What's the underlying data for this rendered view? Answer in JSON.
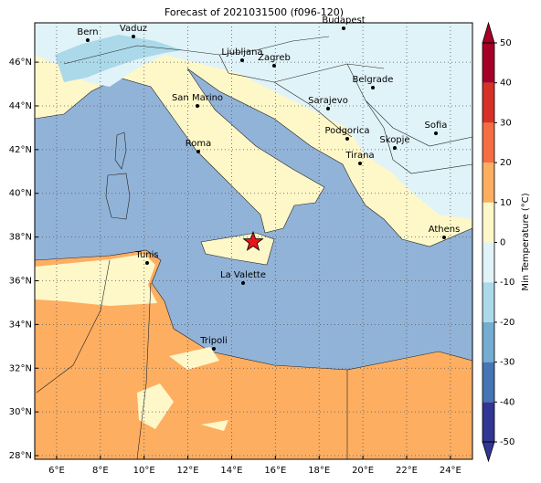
{
  "title": "Forecast of 2021031500 (f096-120)",
  "cities": [
    "Bern",
    "Vaduz",
    "Budapest",
    "Ljubljana",
    "Zagreb",
    "Belgrade",
    "San Marino",
    "Sarajevo",
    "Sofia",
    "Podgorica",
    "Skopje",
    "Roma",
    "Tirana",
    "Athens",
    "Tunis",
    "La Valette",
    "Tripoli"
  ],
  "xticks": [
    {
      "value": 6,
      "label": "6°E"
    },
    {
      "value": 8,
      "label": "8°E"
    },
    {
      "value": 10,
      "label": "10°E"
    },
    {
      "value": 12,
      "label": "12°E"
    },
    {
      "value": 14,
      "label": "14°E"
    },
    {
      "value": 16,
      "label": "16°E"
    },
    {
      "value": 18,
      "label": "18°E"
    },
    {
      "value": 20,
      "label": "20°E"
    },
    {
      "value": 22,
      "label": "22°E"
    },
    {
      "value": 24,
      "label": "24°E"
    }
  ],
  "yticks": [
    {
      "value": 28,
      "label": "28°N"
    },
    {
      "value": 30,
      "label": "30°N"
    },
    {
      "value": 32,
      "label": "32°N"
    },
    {
      "value": 34,
      "label": "34°N"
    },
    {
      "value": 36,
      "label": "36°N"
    },
    {
      "value": 38,
      "label": "38°N"
    },
    {
      "value": 40,
      "label": "40°N"
    },
    {
      "value": 42,
      "label": "42°N"
    },
    {
      "value": 44,
      "label": "44°N"
    },
    {
      "value": 46,
      "label": "46°N"
    }
  ],
  "colorbar": {
    "label": "Min Temperature (°C)",
    "lim": [
      -50,
      50
    ],
    "ticks": [
      -50,
      -40,
      -30,
      -20,
      -10,
      0,
      10,
      20,
      30,
      40,
      50
    ],
    "colors": [
      "#313695",
      "#4575b4",
      "#74add1",
      "#abd9e9",
      "#e0f3f8",
      "#fef7c8",
      "#fdae61",
      "#f46d43",
      "#d73027",
      "#a50026"
    ]
  }
}
